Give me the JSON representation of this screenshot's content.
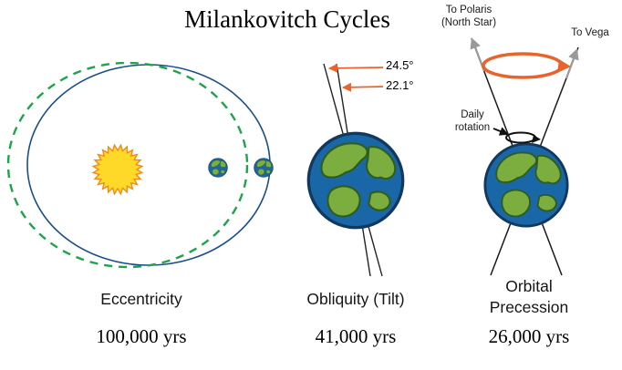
{
  "title": "Milankovitch Cycles",
  "panels": {
    "eccentricity": {
      "label": "Eccentricity",
      "period": "100,000 yrs"
    },
    "obliquity": {
      "label": "Obliquity (Tilt)",
      "period": "41,000 yrs",
      "angle_max": "24.5°",
      "angle_min": "22.1°"
    },
    "precession": {
      "label_line1": "Orbital",
      "label_line2": "Precession",
      "period": "26,000 yrs",
      "polaris_line1": "To Polaris",
      "polaris_line2": "(North Star)",
      "vega": "To Vega",
      "rotation_line1": "Daily",
      "rotation_line2": "rotation"
    }
  },
  "colors": {
    "orbit_solid": "#1b4f8a",
    "orbit_dashed": "#1fa34a",
    "sun_fill": "#ffd927",
    "sun_stroke": "#ef8b1a",
    "accent_arrow": "#e8642c",
    "star_arrow": "#999999",
    "earth_ocean": "#1a67a8",
    "earth_land": "#7cae3f"
  }
}
